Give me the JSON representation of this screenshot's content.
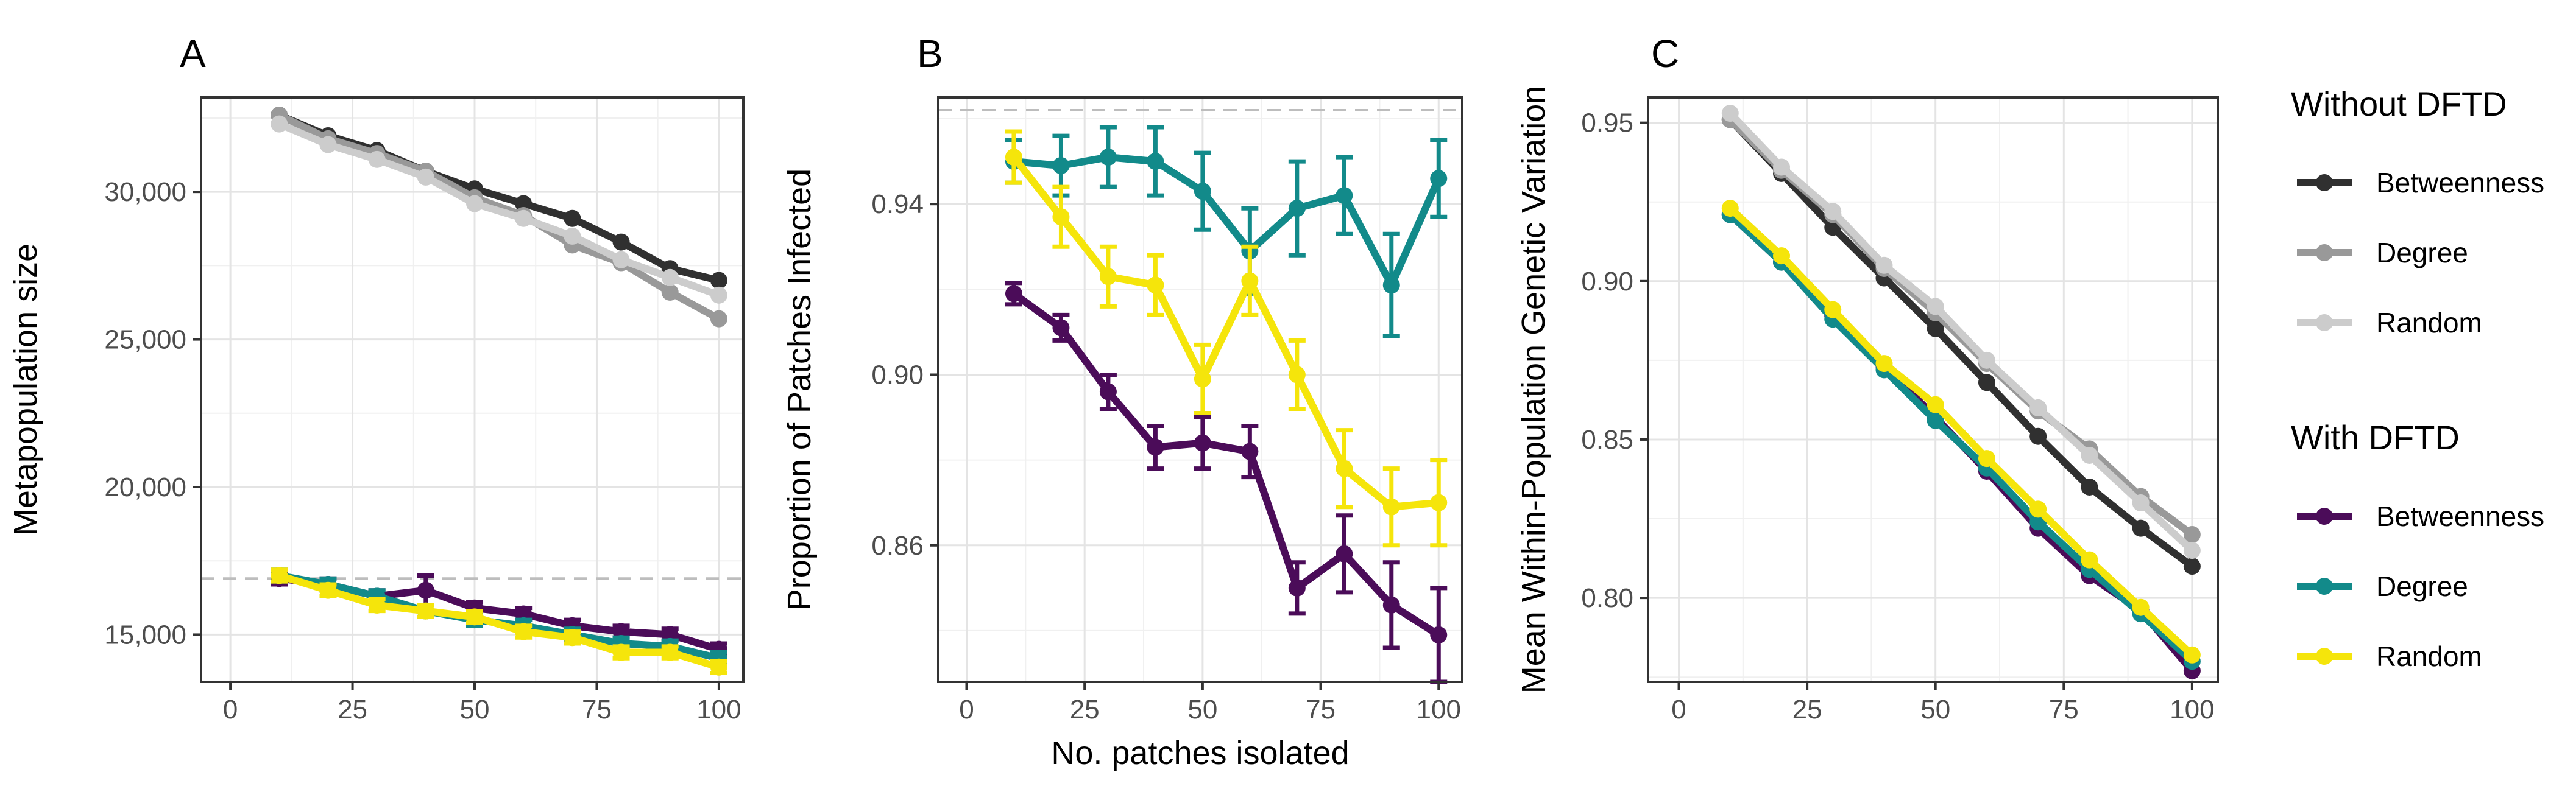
{
  "chart_data": [
    {
      "type": "line",
      "panel_label": "A",
      "title": "",
      "xlabel": "",
      "ylabel": "Metapopulation size",
      "x_ticks": [
        0,
        25,
        50,
        75,
        100
      ],
      "y_ticks": [
        15000,
        20000,
        25000,
        30000
      ],
      "y_tick_labels": [
        "15,000",
        "20,000",
        "25,000",
        "30,000"
      ],
      "xlim": [
        -6,
        105
      ],
      "ylim": [
        13400,
        33200
      ],
      "grid": true,
      "reference_line": 16900,
      "x": [
        10,
        20,
        30,
        40,
        50,
        60,
        70,
        80,
        90,
        100
      ],
      "series": [
        {
          "name": "Betweenness",
          "group": "Without DFTD",
          "color": "#303030",
          "values": [
            32600,
            31900,
            31400,
            30700,
            30100,
            29600,
            29100,
            28300,
            27400,
            27000
          ]
        },
        {
          "name": "Degree",
          "group": "Without DFTD",
          "color": "#999999",
          "values": [
            32600,
            31800,
            31300,
            30700,
            29800,
            29200,
            28200,
            27600,
            26600,
            25700
          ]
        },
        {
          "name": "Random",
          "group": "Without DFTD",
          "color": "#cccccc",
          "values": [
            32300,
            31600,
            31100,
            30500,
            29600,
            29100,
            28500,
            27700,
            27100,
            26500
          ]
        },
        {
          "name": "Betweenness",
          "group": "With DFTD",
          "color": "#4b0c59",
          "values": [
            16900,
            16700,
            16300,
            16500,
            15900,
            15700,
            15300,
            15100,
            15000,
            14500
          ],
          "errors": [
            200,
            200,
            200,
            500,
            200,
            200,
            200,
            200,
            200,
            200
          ]
        },
        {
          "name": "Degree",
          "group": "With DFTD",
          "color": "#128a8a",
          "values": [
            17000,
            16700,
            16300,
            15800,
            15500,
            15300,
            15000,
            14700,
            14600,
            14200
          ],
          "errors": [
            200,
            200,
            200,
            200,
            200,
            200,
            200,
            200,
            200,
            200
          ]
        },
        {
          "name": "Random",
          "group": "With DFTD",
          "color": "#f5e50b",
          "values": [
            17000,
            16500,
            16000,
            15800,
            15600,
            15100,
            14900,
            14400,
            14400,
            13900
          ],
          "errors": [
            200,
            200,
            200,
            200,
            200,
            200,
            200,
            200,
            200,
            200
          ]
        }
      ]
    },
    {
      "type": "line",
      "panel_label": "B",
      "title": "",
      "xlabel": "No. patches isolated",
      "ylabel": "Proportion of Patches Infected",
      "x_ticks": [
        0,
        25,
        50,
        75,
        100
      ],
      "y_ticks": [
        0.86,
        0.9,
        0.94
      ],
      "y_tick_labels": [
        "0.86",
        "0.90",
        "0.94"
      ],
      "xlim": [
        -6,
        105
      ],
      "ylim": [
        0.828,
        0.965
      ],
      "grid": true,
      "reference_line": 0.962,
      "x": [
        10,
        20,
        30,
        40,
        50,
        60,
        70,
        80,
        90,
        100
      ],
      "series": [
        {
          "name": "Betweenness",
          "color": "#4b0c59",
          "values": [
            0.919,
            0.911,
            0.896,
            0.883,
            0.884,
            0.882,
            0.85,
            0.858,
            0.846,
            0.839
          ],
          "errors": [
            0.0025,
            0.003,
            0.004,
            0.005,
            0.006,
            0.006,
            0.006,
            0.009,
            0.01,
            0.011
          ]
        },
        {
          "name": "Degree",
          "color": "#128a8a",
          "values": [
            0.95,
            0.949,
            0.951,
            0.95,
            0.943,
            0.929,
            0.939,
            0.942,
            0.921,
            0.946
          ],
          "errors": [
            0.005,
            0.007,
            0.007,
            0.008,
            0.009,
            0.01,
            0.011,
            0.009,
            0.012,
            0.009
          ]
        },
        {
          "name": "Random",
          "color": "#f5e50b",
          "values": [
            0.951,
            0.937,
            0.923,
            0.921,
            0.899,
            0.922,
            0.9,
            0.878,
            0.869,
            0.87
          ],
          "errors": [
            0.006,
            0.007,
            0.007,
            0.007,
            0.008,
            0.008,
            0.008,
            0.009,
            0.009,
            0.01
          ]
        }
      ]
    },
    {
      "type": "line",
      "panel_label": "C",
      "title": "",
      "xlabel": "",
      "ylabel": "Mean Within-Population Genetic Variation",
      "x_ticks": [
        0,
        25,
        50,
        75,
        100
      ],
      "y_ticks": [
        0.8,
        0.85,
        0.9,
        0.95
      ],
      "y_tick_labels": [
        "0.80",
        "0.85",
        "0.90",
        "0.95"
      ],
      "xlim": [
        -6,
        105
      ],
      "ylim": [
        0.7735,
        0.958
      ],
      "grid": true,
      "x": [
        10,
        20,
        30,
        40,
        50,
        60,
        70,
        80,
        90,
        100
      ],
      "series": [
        {
          "name": "Betweenness",
          "group": "Without DFTD",
          "color": "#303030",
          "values": [
            0.951,
            0.934,
            0.917,
            0.901,
            0.885,
            0.868,
            0.851,
            0.835,
            0.822,
            0.81
          ]
        },
        {
          "name": "Degree",
          "group": "Without DFTD",
          "color": "#999999",
          "values": [
            0.951,
            0.935,
            0.921,
            0.904,
            0.89,
            0.874,
            0.859,
            0.847,
            0.832,
            0.82
          ]
        },
        {
          "name": "Random",
          "group": "Without DFTD",
          "color": "#cccccc",
          "values": [
            0.953,
            0.936,
            0.922,
            0.905,
            0.892,
            0.875,
            0.86,
            0.845,
            0.83,
            0.815
          ]
        },
        {
          "name": "Betweenness",
          "group": "With DFTD",
          "color": "#4b0c59",
          "values": [
            0.921,
            0.906,
            0.889,
            0.873,
            0.857,
            0.84,
            0.822,
            0.807,
            0.796,
            0.777
          ]
        },
        {
          "name": "Degree",
          "group": "With DFTD",
          "color": "#128a8a",
          "values": [
            0.921,
            0.906,
            0.888,
            0.872,
            0.856,
            0.841,
            0.824,
            0.809,
            0.795,
            0.78
          ]
        },
        {
          "name": "Random",
          "group": "With DFTD",
          "color": "#f5e50b",
          "values": [
            0.923,
            0.908,
            0.891,
            0.874,
            0.861,
            0.844,
            0.828,
            0.812,
            0.797,
            0.782
          ]
        }
      ]
    }
  ],
  "legend": {
    "groups": [
      {
        "title": "Without DFTD",
        "items": [
          {
            "label": "Betweenness",
            "color": "#303030"
          },
          {
            "label": "Degree",
            "color": "#999999"
          },
          {
            "label": "Random",
            "color": "#cccccc"
          }
        ]
      },
      {
        "title": "With DFTD",
        "items": [
          {
            "label": "Betweenness",
            "color": "#4b0c59"
          },
          {
            "label": "Degree",
            "color": "#128a8a"
          },
          {
            "label": "Random",
            "color": "#f5e50b"
          }
        ]
      }
    ]
  }
}
